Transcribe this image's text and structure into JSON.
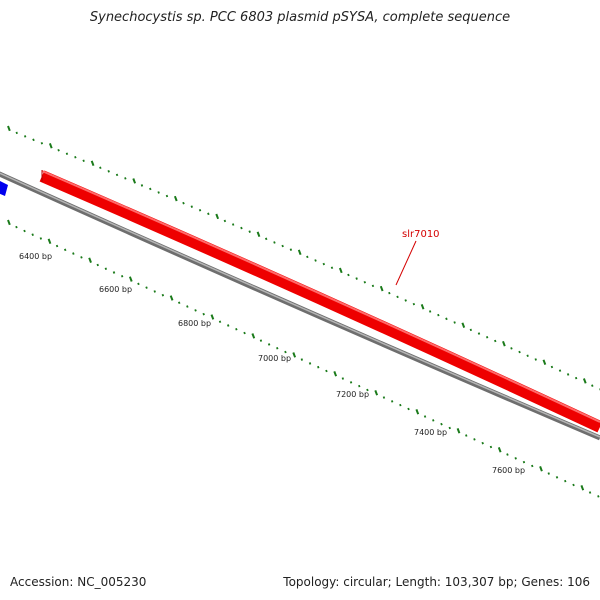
{
  "title": "Synechocystis sp. PCC 6803 plasmid pSYSA, complete sequence",
  "footer": {
    "accession": "Accession: NC_005230",
    "summary": "Topology: circular; Length: 103,307 bp; Genes: 106"
  },
  "genes": [
    {
      "name": "slr7010",
      "color": "#ff0000",
      "labeled": true
    },
    {
      "name": "",
      "color": "#0000ff",
      "labeled": false
    }
  ],
  "scale": {
    "unit": "bp",
    "tick_labels": [
      "6400 bp",
      "6600 bp",
      "6800 bp",
      "7000 bp",
      "7200 bp",
      "7400 bp",
      "7600 bp"
    ]
  },
  "colors": {
    "backbone": "#808080",
    "gc_ticks": "#1a7a1a",
    "label_line": "#d40000"
  }
}
